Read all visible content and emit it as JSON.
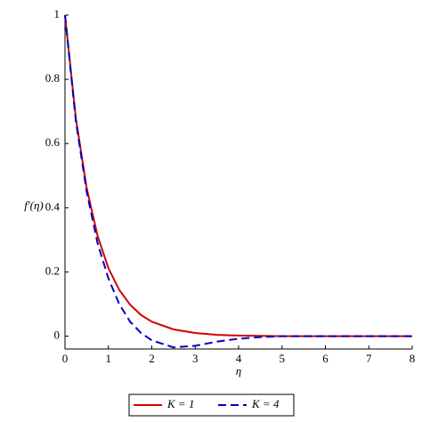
{
  "chart_data": {
    "type": "line",
    "x_label": "η",
    "y_label": "f′(η)",
    "x": [
      0,
      0.25,
      0.5,
      0.75,
      1,
      1.25,
      1.5,
      1.75,
      2,
      2.5,
      3,
      3.5,
      4,
      4.5,
      5,
      6,
      7,
      8
    ],
    "series": [
      {
        "name": "K = 1",
        "color": "#d40000",
        "dash": false,
        "values": [
          1,
          0.679,
          0.461,
          0.313,
          0.212,
          0.144,
          0.098,
          0.066,
          0.045,
          0.021,
          0.01,
          0.004,
          0.002,
          0.001,
          0,
          0,
          0,
          0
        ]
      },
      {
        "name": "K = 4",
        "color": "#0000c0",
        "dash": true,
        "values": [
          1,
          0.67,
          0.45,
          0.29,
          0.18,
          0.1,
          0.045,
          0.01,
          -0.013,
          -0.035,
          -0.03,
          -0.017,
          -0.008,
          -0.003,
          0,
          0,
          0,
          0
        ]
      }
    ],
    "xlim": [
      0,
      8
    ],
    "ylim": [
      -0.04,
      1
    ],
    "xticks": [
      0,
      1,
      2,
      3,
      4,
      5,
      6,
      7,
      8
    ],
    "yticks": [
      0,
      0.2,
      0.4,
      0.6,
      0.8,
      1
    ],
    "legend": "bottom"
  }
}
